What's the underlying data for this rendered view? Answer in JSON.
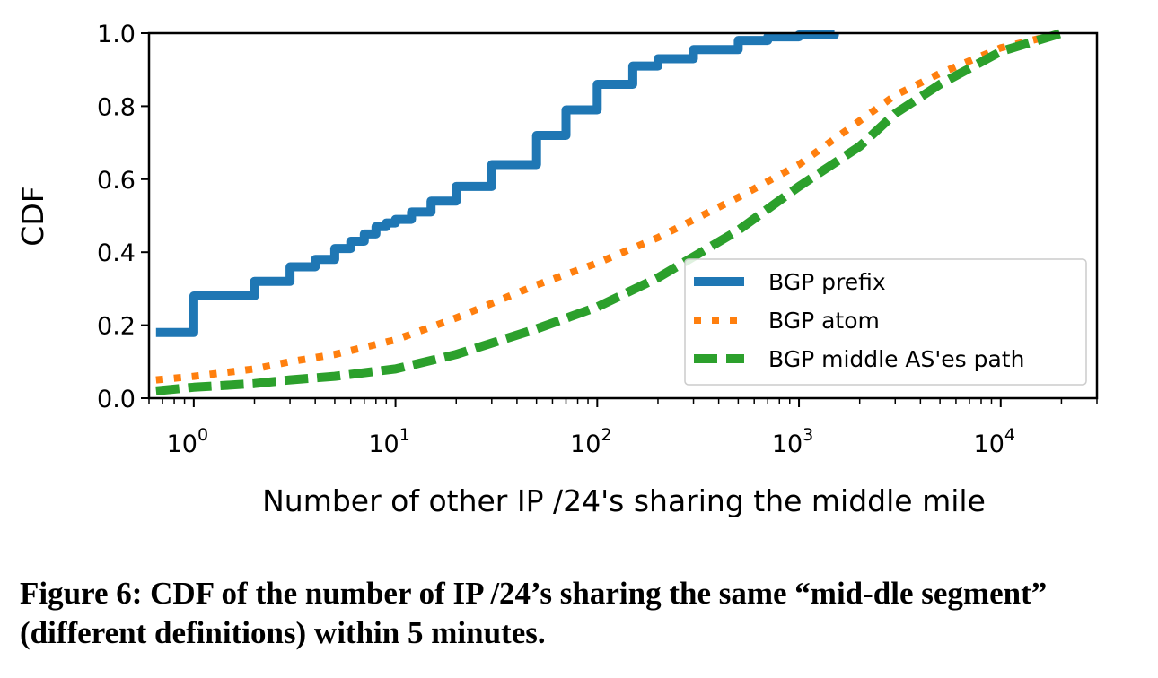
{
  "caption": "Figure 6: CDF of the number of IP /24’s sharing the same “mid-dle segment” (different definitions) within 5 minutes.",
  "chart_data": {
    "type": "line",
    "xlabel": "Number of other IP /24's sharing the middle mile",
    "ylabel": "CDF",
    "xscale": "log",
    "xlim": [
      0.6,
      30000
    ],
    "ylim": [
      0.0,
      1.0
    ],
    "xticks": [
      {
        "value": 1,
        "base": "10",
        "exp": "0"
      },
      {
        "value": 10,
        "base": "10",
        "exp": "1"
      },
      {
        "value": 100,
        "base": "10",
        "exp": "2"
      },
      {
        "value": 1000,
        "base": "10",
        "exp": "3"
      },
      {
        "value": 10000,
        "base": "10",
        "exp": "4"
      }
    ],
    "yticks": [
      "0.0",
      "0.2",
      "0.4",
      "0.6",
      "0.8",
      "1.0"
    ],
    "grid": false,
    "legend_position": "lower-right",
    "series": [
      {
        "name": "BGP prefix",
        "color": "#1f77b4",
        "style": "solid",
        "step": true,
        "x": [
          0.65,
          1,
          2,
          3,
          4,
          5,
          6,
          7,
          8,
          9,
          10,
          12,
          15,
          20,
          30,
          50,
          70,
          100,
          150,
          200,
          300,
          500,
          700,
          1000,
          1500
        ],
        "y": [
          0.18,
          0.28,
          0.32,
          0.36,
          0.38,
          0.41,
          0.43,
          0.45,
          0.47,
          0.48,
          0.49,
          0.51,
          0.54,
          0.58,
          0.64,
          0.72,
          0.79,
          0.86,
          0.91,
          0.93,
          0.955,
          0.98,
          0.99,
          0.995,
          1.0
        ]
      },
      {
        "name": "BGP atom",
        "color": "#ff7f0e",
        "style": "dotted",
        "step": false,
        "x": [
          0.65,
          1,
          2,
          3,
          5,
          10,
          20,
          50,
          100,
          200,
          500,
          1000,
          2000,
          3000,
          5000,
          10000,
          20000
        ],
        "y": [
          0.05,
          0.06,
          0.08,
          0.1,
          0.12,
          0.16,
          0.22,
          0.31,
          0.37,
          0.44,
          0.55,
          0.64,
          0.76,
          0.83,
          0.89,
          0.96,
          1.0
        ]
      },
      {
        "name": "BGP middle AS'es path",
        "color": "#2ca02c",
        "style": "dashed",
        "step": false,
        "x": [
          0.65,
          1,
          2,
          3,
          5,
          10,
          20,
          50,
          100,
          200,
          500,
          1000,
          2000,
          3000,
          5000,
          10000,
          20000
        ],
        "y": [
          0.02,
          0.03,
          0.04,
          0.05,
          0.06,
          0.08,
          0.12,
          0.19,
          0.25,
          0.33,
          0.46,
          0.58,
          0.69,
          0.78,
          0.86,
          0.95,
          1.0
        ]
      }
    ]
  }
}
